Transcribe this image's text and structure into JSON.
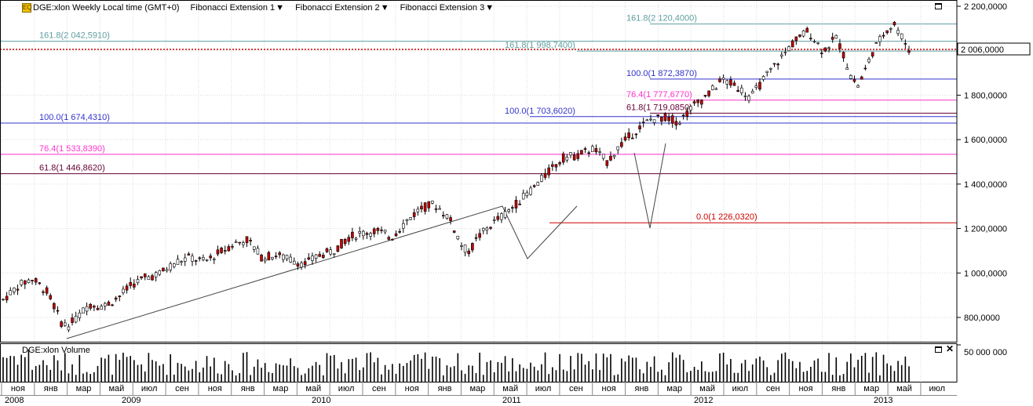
{
  "toolbar": {
    "logo": "EQ",
    "title": "DGE:xlon Weekly Local time (GMT+0)",
    "items": [
      "Fibonacci Extension 1",
      "Fibonacci Extension 2",
      "Fibonacci Extension 3"
    ]
  },
  "volume_title": "DGE:xlon Volume",
  "colors": {
    "up": "#ffffff",
    "down": "#c00000",
    "blue": "#3333cc",
    "magenta": "#ff33cc",
    "purple": "#660033",
    "red": "#cc0000",
    "teal": "#5f9ea0",
    "grid": "#d9d9d9"
  },
  "chart_data": {
    "type": "candlestick",
    "title": "DGE:xlon Weekly Local time (GMT+0)",
    "ylim": [
      720,
      2210
    ],
    "y_ticks": [
      "800,0000",
      "1 000,0000",
      "1 200,0000",
      "1 400,0000",
      "1 600,0000",
      "1 800,0000",
      "2 000,0000",
      "2 200,0000"
    ],
    "y_tick_values": [
      800,
      1000,
      1200,
      1400,
      1600,
      1800,
      2000,
      2200
    ],
    "current_price": {
      "value": 2006,
      "label": "2 006,0000"
    },
    "x_months": [
      "ноя",
      "янв",
      "мар",
      "май",
      "июл",
      "сен",
      "ноя",
      "янв",
      "мар",
      "май",
      "июл",
      "сен",
      "ноя",
      "янв",
      "мар",
      "май",
      "июл",
      "сен",
      "ноя",
      "янв",
      "мар",
      "май",
      "июл",
      "сен",
      "ноя",
      "янв",
      "мар",
      "май",
      "июл"
    ],
    "x_years": [
      "2008",
      "2009",
      "2010",
      "2011",
      "2012",
      "2013"
    ],
    "price_points": [
      [
        0,
        880
      ],
      [
        2,
        940
      ],
      [
        4,
        975
      ],
      [
        6,
        920
      ],
      [
        7,
        860
      ],
      [
        8,
        780
      ],
      [
        9,
        760
      ],
      [
        10,
        790
      ],
      [
        12,
        860
      ],
      [
        14,
        850
      ],
      [
        16,
        890
      ],
      [
        18,
        950
      ],
      [
        20,
        980
      ],
      [
        22,
        1000
      ],
      [
        24,
        1050
      ],
      [
        26,
        1070
      ],
      [
        28,
        1050
      ],
      [
        30,
        1090
      ],
      [
        32,
        1130
      ],
      [
        34,
        1150
      ],
      [
        36,
        1070
      ],
      [
        38,
        1080
      ],
      [
        40,
        1060
      ],
      [
        42,
        1040
      ],
      [
        44,
        1080
      ],
      [
        46,
        1100
      ],
      [
        48,
        1160
      ],
      [
        50,
        1180
      ],
      [
        52,
        1190
      ],
      [
        54,
        1160
      ],
      [
        56,
        1230
      ],
      [
        58,
        1290
      ],
      [
        60,
        1310
      ],
      [
        62,
        1250
      ],
      [
        64,
        1110
      ],
      [
        65,
        1100
      ],
      [
        66,
        1160
      ],
      [
        68,
        1220
      ],
      [
        70,
        1270
      ],
      [
        72,
        1330
      ],
      [
        74,
        1390
      ],
      [
        76,
        1460
      ],
      [
        78,
        1520
      ],
      [
        80,
        1530
      ],
      [
        82,
        1560
      ],
      [
        84,
        1500
      ],
      [
        86,
        1580
      ],
      [
        88,
        1640
      ],
      [
        90,
        1690
      ],
      [
        92,
        1700
      ],
      [
        94,
        1680
      ],
      [
        96,
        1750
      ],
      [
        98,
        1800
      ],
      [
        100,
        1870
      ],
      [
        102,
        1840
      ],
      [
        104,
        1790
      ],
      [
        106,
        1880
      ],
      [
        108,
        1960
      ],
      [
        110,
        2040
      ],
      [
        112,
        2090
      ],
      [
        114,
        2000
      ],
      [
        116,
        2060
      ],
      [
        118,
        1880
      ],
      [
        119,
        1840
      ],
      [
        121,
        2000
      ],
      [
        123,
        2100
      ],
      [
        124,
        2120
      ],
      [
        126,
        2006
      ]
    ],
    "volume_ylabel": "50 000 000",
    "fibonacci": [
      {
        "label": "161.8(2 042,5910)",
        "value": 2042.591,
        "color": "teal"
      },
      {
        "label": "100.0(1 674,4310)",
        "value": 1674.431,
        "color": "blue"
      },
      {
        "label": "76.4(1 533,8390)",
        "value": 1533.839,
        "color": "magenta"
      },
      {
        "label": "61.8(1 446,8620)",
        "value": 1446.862,
        "color": "purple"
      },
      {
        "label": "161.8(1 998,7400)",
        "value": 1998.74,
        "color": "teal"
      },
      {
        "label": "100.0(1 703,6020)",
        "value": 1703.602,
        "color": "blue"
      },
      {
        "label": "161.8(2 120,4000)",
        "value": 2120.4,
        "color": "teal"
      },
      {
        "label": "100.0(1 872,3870)",
        "value": 1872.387,
        "color": "blue"
      },
      {
        "label": "76.4(1 777,6770)",
        "value": 1777.677,
        "color": "magenta"
      },
      {
        "label": "61.8(1 719,0850)",
        "value": 1719.085,
        "color": "purple"
      },
      {
        "label": "0.0(1 226,0320)",
        "value": 1226.032,
        "color": "red"
      }
    ]
  }
}
